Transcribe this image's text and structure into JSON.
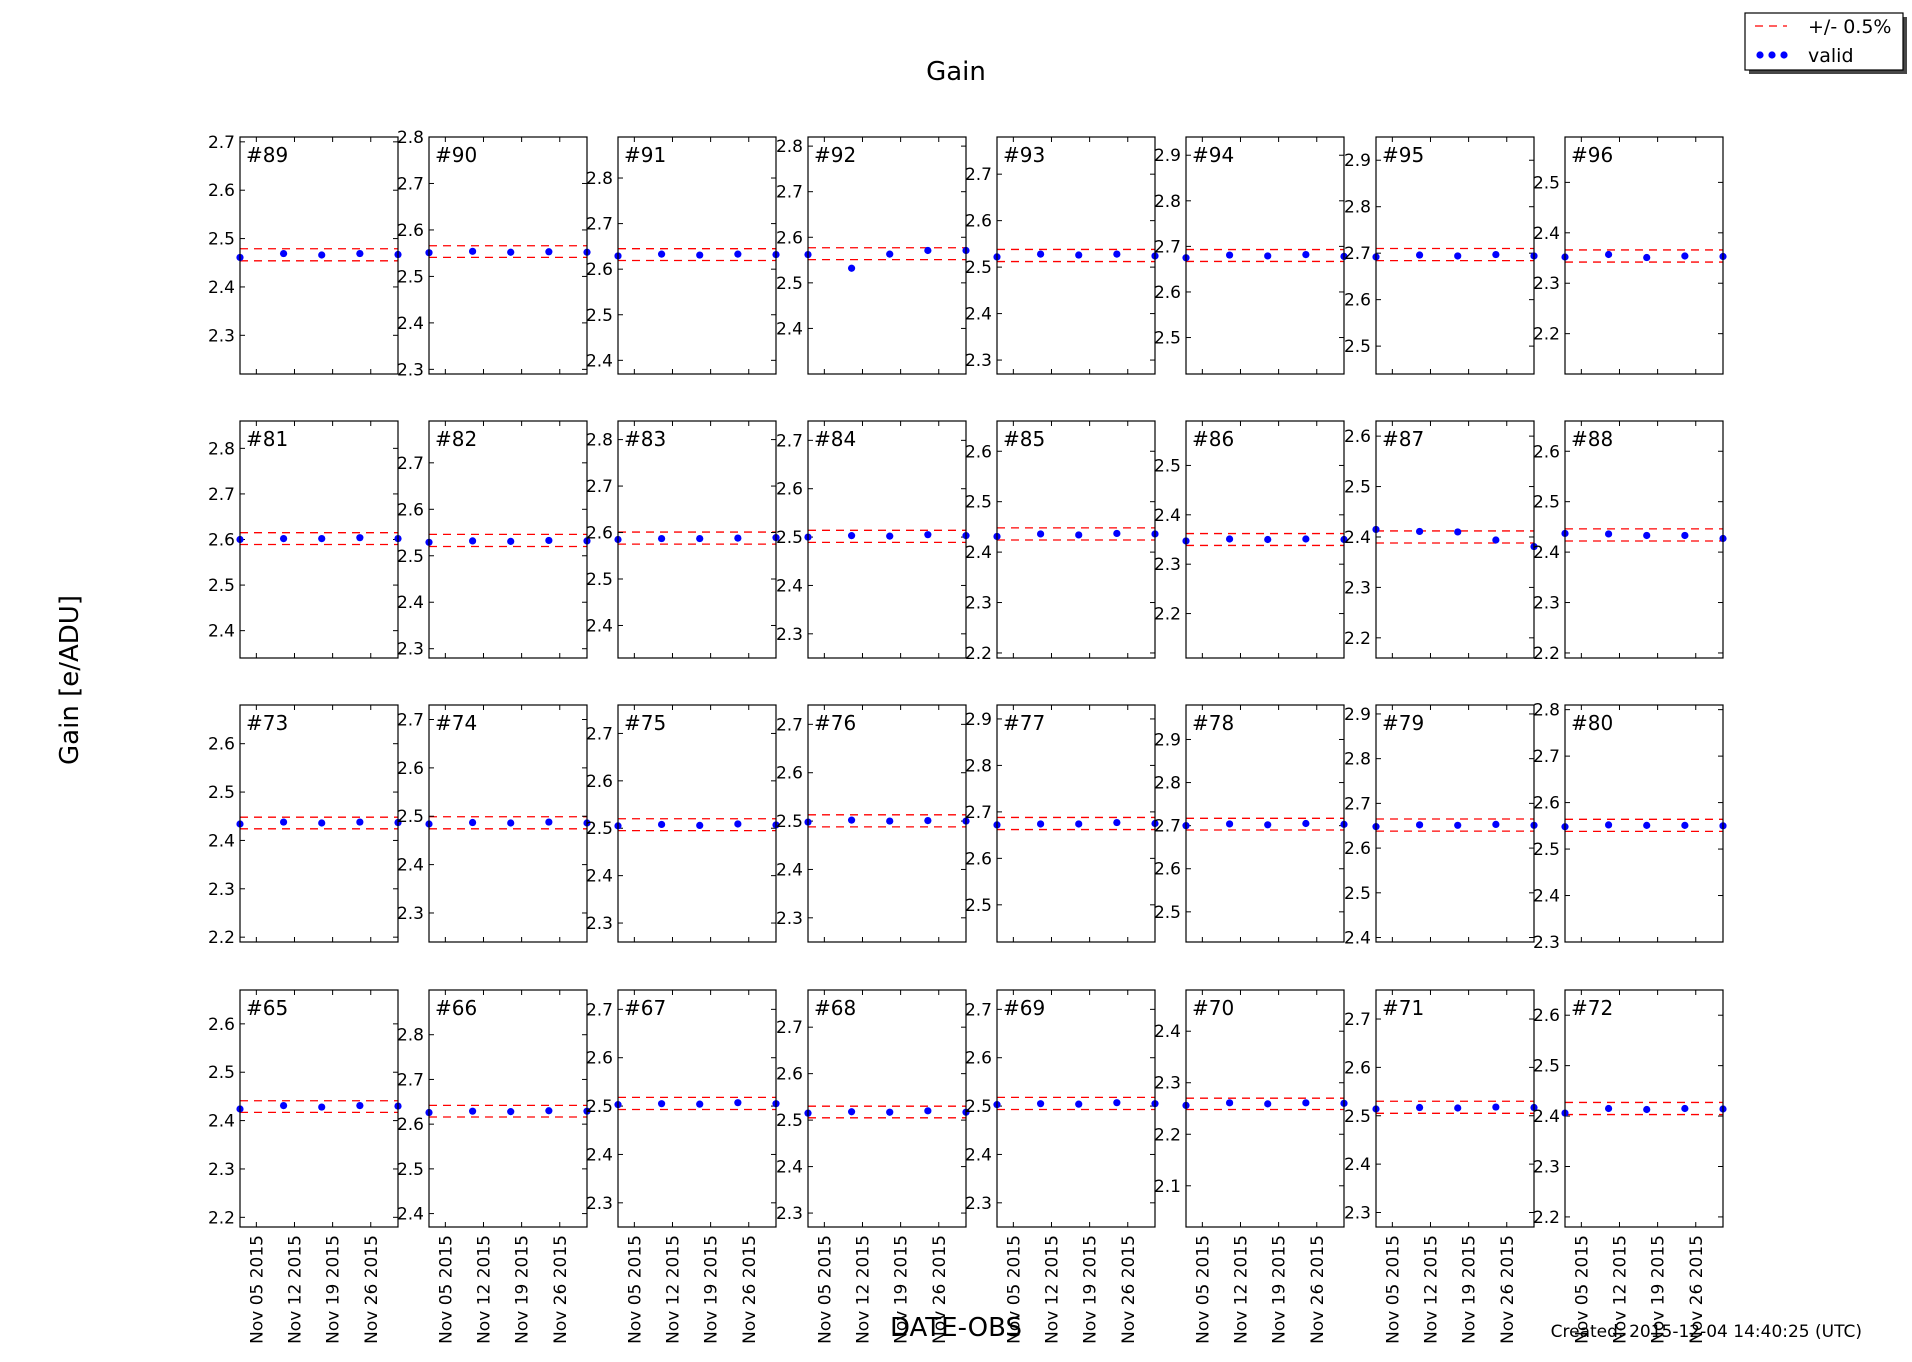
{
  "figure": {
    "title": "Gain",
    "ylabel": "Gain [e/ADU]",
    "xlabel": "DATE-OBS",
    "footer": "Created: 2015-12-04 14:40:25 (UTC)"
  },
  "legend": {
    "placement": "top-right",
    "items": [
      {
        "label": "+/- 0.5%",
        "style": "dashed-line",
        "color": "#ff0000"
      },
      {
        "label": "valid",
        "style": "dots",
        "color": "#0000ff"
      }
    ]
  },
  "chart_data": {
    "type": "scatter",
    "grid": false,
    "x_dates": [
      "2015-11-02",
      "2015-11-10",
      "2015-11-17",
      "2015-11-24",
      "2015-12-01"
    ],
    "xlim": [
      "2015-11-02",
      "2015-12-01"
    ],
    "x_tick_labels": [
      "Nov 05 2015",
      "Nov 12 2015",
      "Nov 19 2015",
      "Nov 26 2015"
    ],
    "x_tick_dates": [
      "2015-11-05",
      "2015-11-12",
      "2015-11-19",
      "2015-11-26"
    ],
    "tolerance_band": "+/- 0.5%",
    "panels": [
      {
        "label": "#89",
        "ylim": [
          2.22,
          2.71
        ],
        "yticks": [
          2.3,
          2.4,
          2.5,
          2.6,
          2.7
        ],
        "band": [
          2.454,
          2.479
        ],
        "values": [
          2.461,
          2.469,
          2.466,
          2.469,
          2.467
        ]
      },
      {
        "label": "#90",
        "ylim": [
          2.29,
          2.8
        ],
        "yticks": [
          2.3,
          2.4,
          2.5,
          2.6,
          2.7,
          2.8
        ],
        "band": [
          2.541,
          2.566
        ],
        "values": [
          2.551,
          2.554,
          2.552,
          2.553,
          2.552
        ]
      },
      {
        "label": "#91",
        "ylim": [
          2.37,
          2.89
        ],
        "yticks": [
          2.4,
          2.5,
          2.6,
          2.7,
          2.8
        ],
        "band": [
          2.619,
          2.645
        ],
        "values": [
          2.629,
          2.633,
          2.631,
          2.633,
          2.632
        ]
      },
      {
        "label": "#92",
        "ylim": [
          2.3,
          2.82
        ],
        "yticks": [
          2.4,
          2.5,
          2.6,
          2.7,
          2.8
        ],
        "band": [
          2.551,
          2.577
        ],
        "values": [
          2.562,
          2.532,
          2.563,
          2.571,
          2.571
        ]
      },
      {
        "label": "#93",
        "ylim": [
          2.27,
          2.78
        ],
        "yticks": [
          2.3,
          2.4,
          2.5,
          2.6,
          2.7
        ],
        "band": [
          2.512,
          2.538
        ],
        "values": [
          2.522,
          2.528,
          2.526,
          2.528,
          2.524
        ]
      },
      {
        "label": "#94",
        "ylim": [
          2.42,
          2.94
        ],
        "yticks": [
          2.5,
          2.6,
          2.7,
          2.8,
          2.9
        ],
        "band": [
          2.667,
          2.693
        ],
        "values": [
          2.675,
          2.681,
          2.679,
          2.682,
          2.678
        ]
      },
      {
        "label": "#95",
        "ylim": [
          2.44,
          2.95
        ],
        "yticks": [
          2.5,
          2.6,
          2.7,
          2.8,
          2.9
        ],
        "band": [
          2.684,
          2.71
        ],
        "values": [
          2.692,
          2.696,
          2.694,
          2.697,
          2.694
        ]
      },
      {
        "label": "#96",
        "ylim": [
          2.12,
          2.59
        ],
        "yticks": [
          2.2,
          2.3,
          2.4,
          2.5
        ],
        "band": [
          2.342,
          2.366
        ],
        "values": [
          2.352,
          2.357,
          2.351,
          2.354,
          2.353
        ]
      },
      {
        "label": "#81",
        "ylim": [
          2.34,
          2.86
        ],
        "yticks": [
          2.4,
          2.5,
          2.6,
          2.7,
          2.8
        ],
        "band": [
          2.589,
          2.615
        ],
        "values": [
          2.6,
          2.602,
          2.602,
          2.604,
          2.602
        ]
      },
      {
        "label": "#82",
        "ylim": [
          2.28,
          2.79
        ],
        "yticks": [
          2.3,
          2.4,
          2.5,
          2.6,
          2.7
        ],
        "band": [
          2.52,
          2.546
        ],
        "values": [
          2.529,
          2.532,
          2.531,
          2.533,
          2.532
        ]
      },
      {
        "label": "#83",
        "ylim": [
          2.33,
          2.84
        ],
        "yticks": [
          2.4,
          2.5,
          2.6,
          2.7,
          2.8
        ],
        "band": [
          2.575,
          2.601
        ],
        "values": [
          2.585,
          2.587,
          2.587,
          2.588,
          2.589
        ]
      },
      {
        "label": "#84",
        "ylim": [
          2.25,
          2.74
        ],
        "yticks": [
          2.3,
          2.4,
          2.5,
          2.6,
          2.7
        ],
        "band": [
          2.489,
          2.514
        ],
        "values": [
          2.5,
          2.503,
          2.502,
          2.505,
          2.503
        ]
      },
      {
        "label": "#85",
        "ylim": [
          2.19,
          2.66
        ],
        "yticks": [
          2.2,
          2.3,
          2.4,
          2.5,
          2.6
        ],
        "band": [
          2.424,
          2.448
        ],
        "values": [
          2.431,
          2.436,
          2.434,
          2.437,
          2.436
        ]
      },
      {
        "label": "#86",
        "ylim": [
          2.11,
          2.59
        ],
        "yticks": [
          2.2,
          2.3,
          2.4,
          2.5
        ],
        "band": [
          2.338,
          2.362
        ],
        "values": [
          2.347,
          2.351,
          2.35,
          2.351,
          2.35
        ]
      },
      {
        "label": "#87",
        "ylim": [
          2.16,
          2.63
        ],
        "yticks": [
          2.2,
          2.3,
          2.4,
          2.5,
          2.6
        ],
        "band": [
          2.388,
          2.412
        ],
        "values": [
          2.415,
          2.411,
          2.41,
          2.394,
          2.381
        ]
      },
      {
        "label": "#88",
        "ylim": [
          2.19,
          2.66
        ],
        "yticks": [
          2.2,
          2.3,
          2.4,
          2.5,
          2.6
        ],
        "band": [
          2.422,
          2.446
        ],
        "values": [
          2.437,
          2.436,
          2.433,
          2.433,
          2.427
        ]
      },
      {
        "label": "#73",
        "ylim": [
          2.19,
          2.68
        ],
        "yticks": [
          2.2,
          2.3,
          2.4,
          2.5,
          2.6
        ],
        "band": [
          2.424,
          2.448
        ],
        "values": [
          2.434,
          2.438,
          2.436,
          2.438,
          2.437
        ]
      },
      {
        "label": "#74",
        "ylim": [
          2.24,
          2.73
        ],
        "yticks": [
          2.3,
          2.4,
          2.5,
          2.6,
          2.7
        ],
        "band": [
          2.474,
          2.499
        ],
        "values": [
          2.484,
          2.487,
          2.486,
          2.488,
          2.486
        ]
      },
      {
        "label": "#75",
        "ylim": [
          2.26,
          2.76
        ],
        "yticks": [
          2.3,
          2.4,
          2.5,
          2.6,
          2.7
        ],
        "band": [
          2.495,
          2.52
        ],
        "values": [
          2.505,
          2.508,
          2.506,
          2.509,
          2.507
        ]
      },
      {
        "label": "#76",
        "ylim": [
          2.25,
          2.74
        ],
        "yticks": [
          2.3,
          2.4,
          2.5,
          2.6,
          2.7
        ],
        "band": [
          2.488,
          2.513
        ],
        "values": [
          2.498,
          2.502,
          2.5,
          2.501,
          2.5
        ]
      },
      {
        "label": "#77",
        "ylim": [
          2.42,
          2.93
        ],
        "yticks": [
          2.5,
          2.6,
          2.7,
          2.8,
          2.9
        ],
        "band": [
          2.662,
          2.688
        ],
        "values": [
          2.672,
          2.674,
          2.674,
          2.677,
          2.675
        ]
      },
      {
        "label": "#78",
        "ylim": [
          2.43,
          2.98
        ],
        "yticks": [
          2.5,
          2.6,
          2.7,
          2.8,
          2.9
        ],
        "band": [
          2.69,
          2.717
        ],
        "values": [
          2.7,
          2.704,
          2.702,
          2.705,
          2.703
        ]
      },
      {
        "label": "#79",
        "ylim": [
          2.39,
          2.92
        ],
        "yticks": [
          2.4,
          2.5,
          2.6,
          2.7,
          2.8,
          2.9
        ],
        "band": [
          2.638,
          2.665
        ],
        "values": [
          2.648,
          2.652,
          2.651,
          2.653,
          2.651
        ]
      },
      {
        "label": "#80",
        "ylim": [
          2.3,
          2.81
        ],
        "yticks": [
          2.3,
          2.4,
          2.5,
          2.6,
          2.7,
          2.8
        ],
        "band": [
          2.538,
          2.564
        ],
        "values": [
          2.548,
          2.552,
          2.551,
          2.551,
          2.55
        ]
      },
      {
        "label": "#65",
        "ylim": [
          2.18,
          2.67
        ],
        "yticks": [
          2.2,
          2.3,
          2.4,
          2.5,
          2.6
        ],
        "band": [
          2.417,
          2.441
        ],
        "values": [
          2.424,
          2.431,
          2.428,
          2.431,
          2.43
        ]
      },
      {
        "label": "#66",
        "ylim": [
          2.37,
          2.9
        ],
        "yticks": [
          2.4,
          2.5,
          2.6,
          2.7,
          2.8
        ],
        "band": [
          2.616,
          2.642
        ],
        "values": [
          2.626,
          2.629,
          2.628,
          2.63,
          2.629
        ]
      },
      {
        "label": "#67",
        "ylim": [
          2.25,
          2.74
        ],
        "yticks": [
          2.3,
          2.4,
          2.5,
          2.6,
          2.7
        ],
        "band": [
          2.493,
          2.518
        ],
        "values": [
          2.503,
          2.505,
          2.504,
          2.507,
          2.505
        ]
      },
      {
        "label": "#68",
        "ylim": [
          2.27,
          2.78
        ],
        "yticks": [
          2.3,
          2.4,
          2.5,
          2.6,
          2.7
        ],
        "band": [
          2.505,
          2.53
        ],
        "values": [
          2.515,
          2.518,
          2.517,
          2.52,
          2.517
        ]
      },
      {
        "label": "#69",
        "ylim": [
          2.25,
          2.74
        ],
        "yticks": [
          2.3,
          2.4,
          2.5,
          2.6,
          2.7
        ],
        "band": [
          2.493,
          2.518
        ],
        "values": [
          2.503,
          2.505,
          2.504,
          2.507,
          2.505
        ]
      },
      {
        "label": "#70",
        "ylim": [
          2.02,
          2.48
        ],
        "yticks": [
          2.1,
          2.2,
          2.3,
          2.4
        ],
        "band": [
          2.248,
          2.27
        ],
        "values": [
          2.256,
          2.261,
          2.259,
          2.261,
          2.26
        ]
      },
      {
        "label": "#71",
        "ylim": [
          2.27,
          2.76
        ],
        "yticks": [
          2.3,
          2.4,
          2.5,
          2.6,
          2.7
        ],
        "band": [
          2.505,
          2.53
        ],
        "values": [
          2.514,
          2.517,
          2.516,
          2.518,
          2.517
        ]
      },
      {
        "label": "#72",
        "ylim": [
          2.18,
          2.65
        ],
        "yticks": [
          2.2,
          2.3,
          2.4,
          2.5,
          2.6
        ],
        "band": [
          2.403,
          2.427
        ],
        "values": [
          2.406,
          2.415,
          2.413,
          2.415,
          2.414
        ]
      }
    ]
  }
}
